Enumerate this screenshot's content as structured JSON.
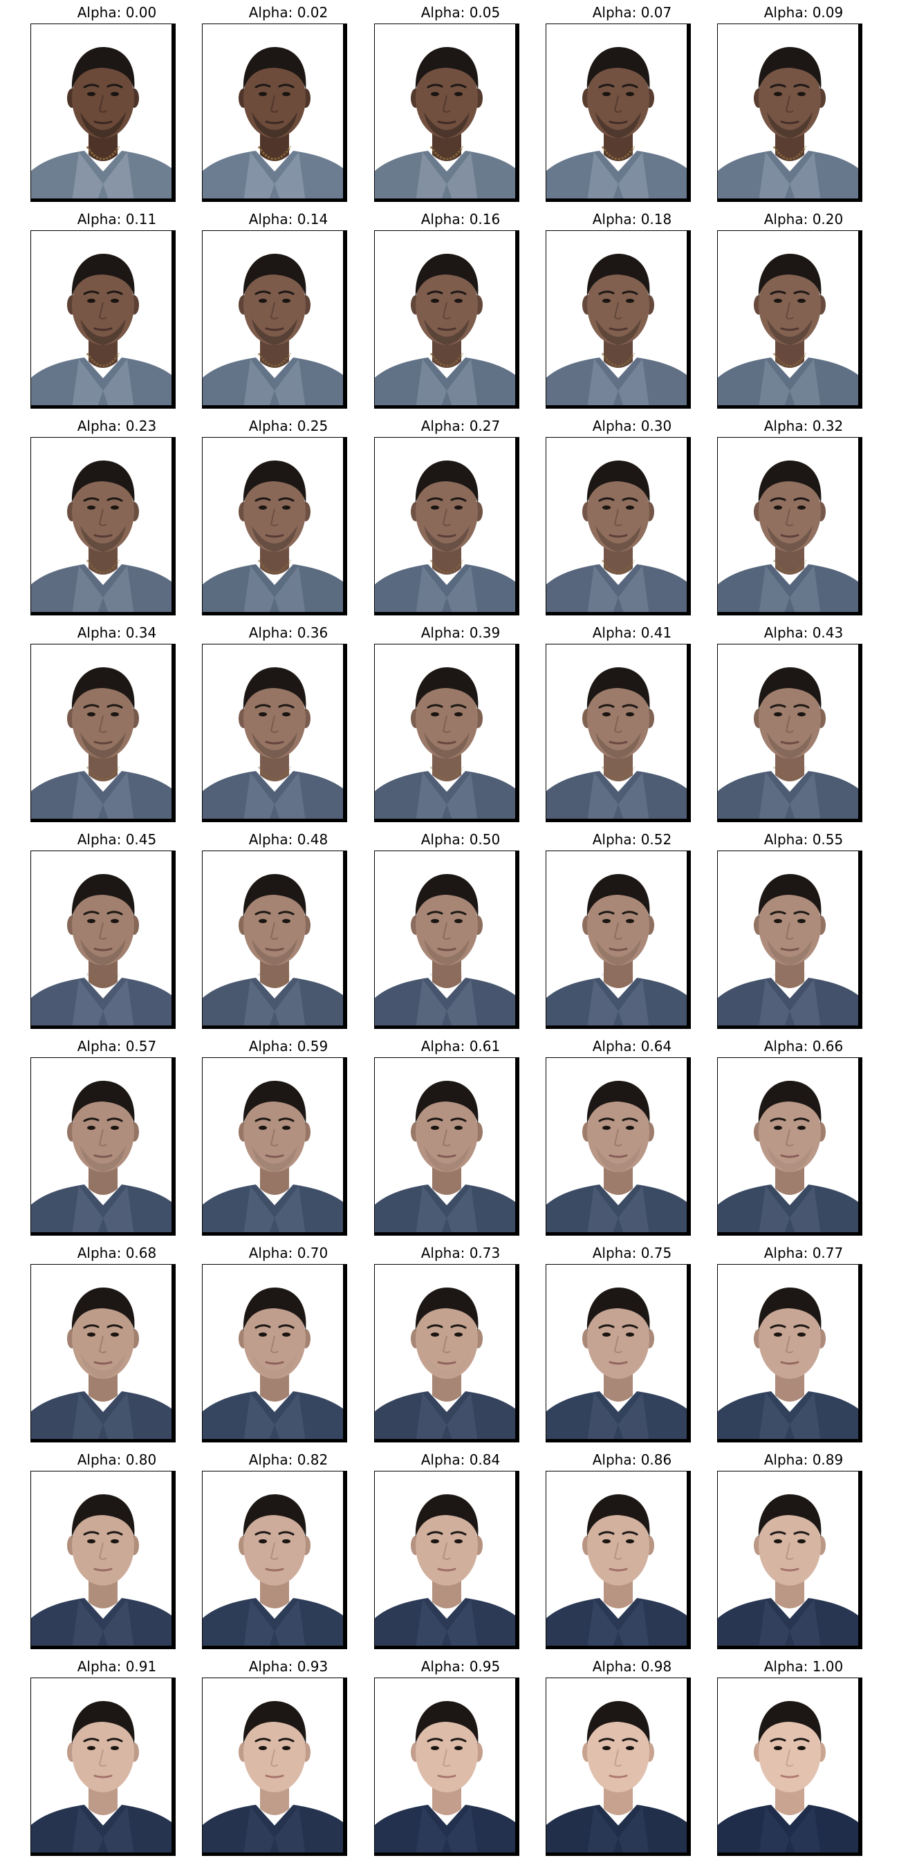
{
  "grid": {
    "columns": 5,
    "rows": 9,
    "panels": [
      {
        "title": "Alpha: 0.00",
        "alpha": 0.0
      },
      {
        "title": "Alpha: 0.02",
        "alpha": 0.02
      },
      {
        "title": "Alpha: 0.05",
        "alpha": 0.05
      },
      {
        "title": "Alpha: 0.07",
        "alpha": 0.07
      },
      {
        "title": "Alpha: 0.09",
        "alpha": 0.09
      },
      {
        "title": "Alpha: 0.11",
        "alpha": 0.11
      },
      {
        "title": "Alpha: 0.14",
        "alpha": 0.14
      },
      {
        "title": "Alpha: 0.16",
        "alpha": 0.16
      },
      {
        "title": "Alpha: 0.18",
        "alpha": 0.18
      },
      {
        "title": "Alpha: 0.20",
        "alpha": 0.2
      },
      {
        "title": "Alpha: 0.23",
        "alpha": 0.23
      },
      {
        "title": "Alpha: 0.25",
        "alpha": 0.25
      },
      {
        "title": "Alpha: 0.27",
        "alpha": 0.27
      },
      {
        "title": "Alpha: 0.30",
        "alpha": 0.3
      },
      {
        "title": "Alpha: 0.32",
        "alpha": 0.32
      },
      {
        "title": "Alpha: 0.34",
        "alpha": 0.34
      },
      {
        "title": "Alpha: 0.36",
        "alpha": 0.36
      },
      {
        "title": "Alpha: 0.39",
        "alpha": 0.39
      },
      {
        "title": "Alpha: 0.41",
        "alpha": 0.41
      },
      {
        "title": "Alpha: 0.43",
        "alpha": 0.43
      },
      {
        "title": "Alpha: 0.45",
        "alpha": 0.45
      },
      {
        "title": "Alpha: 0.48",
        "alpha": 0.48
      },
      {
        "title": "Alpha: 0.50",
        "alpha": 0.5
      },
      {
        "title": "Alpha: 0.52",
        "alpha": 0.52
      },
      {
        "title": "Alpha: 0.55",
        "alpha": 0.55
      },
      {
        "title": "Alpha: 0.57",
        "alpha": 0.57
      },
      {
        "title": "Alpha: 0.59",
        "alpha": 0.59
      },
      {
        "title": "Alpha: 0.61",
        "alpha": 0.61
      },
      {
        "title": "Alpha: 0.64",
        "alpha": 0.64
      },
      {
        "title": "Alpha: 0.66",
        "alpha": 0.66
      },
      {
        "title": "Alpha: 0.68",
        "alpha": 0.68
      },
      {
        "title": "Alpha: 0.70",
        "alpha": 0.7
      },
      {
        "title": "Alpha: 0.73",
        "alpha": 0.73
      },
      {
        "title": "Alpha: 0.75",
        "alpha": 0.75
      },
      {
        "title": "Alpha: 0.77",
        "alpha": 0.77
      },
      {
        "title": "Alpha: 0.80",
        "alpha": 0.8
      },
      {
        "title": "Alpha: 0.82",
        "alpha": 0.82
      },
      {
        "title": "Alpha: 0.84",
        "alpha": 0.84
      },
      {
        "title": "Alpha: 0.86",
        "alpha": 0.86
      },
      {
        "title": "Alpha: 0.89",
        "alpha": 0.89
      },
      {
        "title": "Alpha: 0.91",
        "alpha": 0.91
      },
      {
        "title": "Alpha: 0.93",
        "alpha": 0.93
      },
      {
        "title": "Alpha: 0.95",
        "alpha": 0.95
      },
      {
        "title": "Alpha: 0.98",
        "alpha": 0.98
      },
      {
        "title": "Alpha: 1.00",
        "alpha": 1.0
      }
    ]
  },
  "colors": {
    "background": "#ffffff",
    "frame_border": "#000000",
    "skin_start": "#6b4a3a",
    "skin_end": "#e3c2b0",
    "hair": "#1c1714",
    "shirt_start": "#6f7f92",
    "shirt_end": "#1f2d4a",
    "chain": "#8a6a3a"
  }
}
